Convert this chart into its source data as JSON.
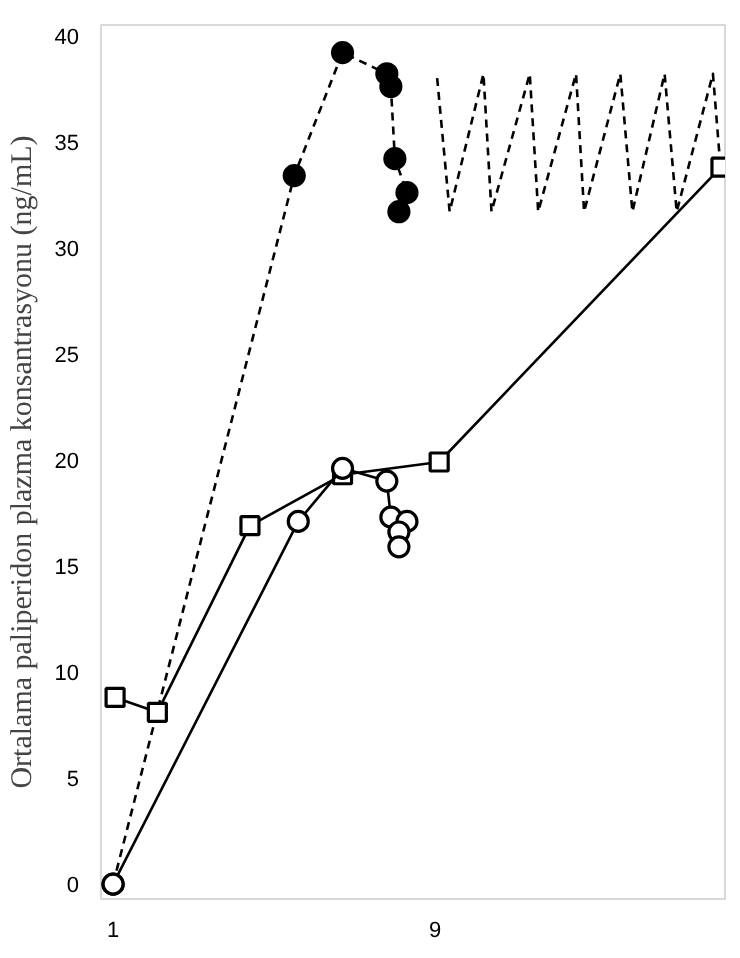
{
  "chart_data": {
    "type": "line",
    "ylabel": "Ortalama paliperidon plazma konsantrasyonu (ng/mL)",
    "xlim": [
      0.7,
      16.2
    ],
    "xticks": [
      1,
      9
    ],
    "ylim": [
      -0.7,
      40.5
    ],
    "yticks": [
      0,
      5,
      10,
      15,
      20,
      25,
      30,
      35,
      40
    ],
    "grid": false,
    "series": [
      {
        "color": "#000000",
        "marker": "circle",
        "line_style": "dashed",
        "x": [
          1,
          5.5,
          6.7,
          7.8,
          7.9,
          8.0,
          8.3,
          8.1
        ],
        "values": [
          0,
          33.4,
          39.2,
          38.2,
          37.6,
          34.2,
          32.6,
          31.7
        ]
      },
      {
        "color": "#000000",
        "marker": "none",
        "line_style": "dashed",
        "x": [
          9.05,
          9.36,
          10.2,
          10.4,
          11.35,
          11.56,
          12.5,
          12.7,
          13.6,
          13.9,
          14.7,
          15.0,
          15.9,
          16.1
        ],
        "values": [
          38.0,
          31.7,
          38.2,
          31.7,
          38.2,
          31.7,
          38.2,
          31.7,
          38.2,
          31.7,
          38.2,
          31.7,
          38.2,
          33.5
        ]
      },
      {
        "color": "#000000",
        "marker": "square",
        "line_style": "solid",
        "x": [
          1.05,
          2.1,
          4.4,
          6.7,
          9.1,
          16.1
        ],
        "values": [
          8.8,
          8.1,
          16.9,
          19.3,
          19.9,
          33.8
        ]
      },
      {
        "color": "#000000",
        "marker": "circle",
        "line_style": "solid",
        "x": [
          1,
          5.6,
          6.7,
          7.8,
          7.9,
          8.3,
          8.1,
          8.1
        ],
        "values": [
          0,
          17.1,
          19.6,
          19.0,
          17.3,
          17.1,
          16.6,
          15.9
        ]
      }
    ]
  }
}
